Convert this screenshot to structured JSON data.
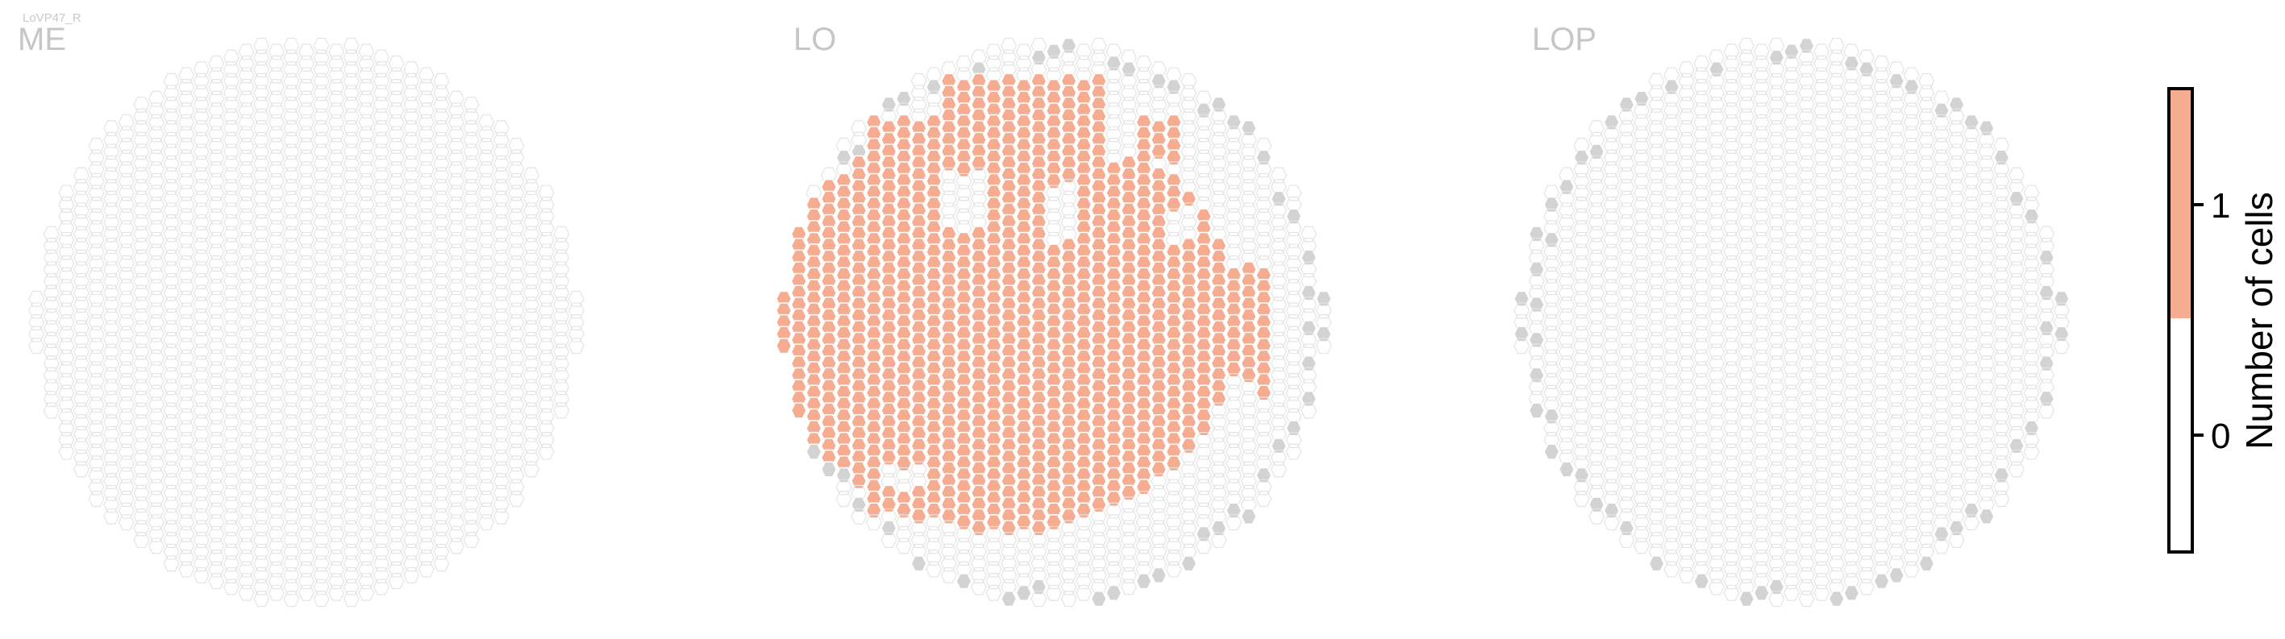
{
  "cell_type": "LoVP47_R",
  "chart_data": {
    "type": "heatmap",
    "layout": "hexagonal column map, one hexagon per retinotopic column",
    "panels": [
      {
        "title": "ME",
        "nonzero_cells": []
      },
      {
        "title": "LO",
        "nonzero_cells": "most of the interior of the LO column map (≈480 columns) have value 1; the remaining columns have value 0"
      },
      {
        "title": "LOP",
        "nonzero_cells": []
      }
    ],
    "colorbar": {
      "label": "Number of cells",
      "ticks": [
        "0",
        "1"
      ],
      "range": [
        0,
        1
      ],
      "colors": {
        "0": "#ffffff",
        "1": "#f5ac91"
      }
    },
    "colors": {
      "empty_column_stroke": "#e4e4e4",
      "edge_column_fill": "#d3d3d3",
      "value_fill": "#f5ac91",
      "value_stroke": "#ffffff"
    }
  }
}
